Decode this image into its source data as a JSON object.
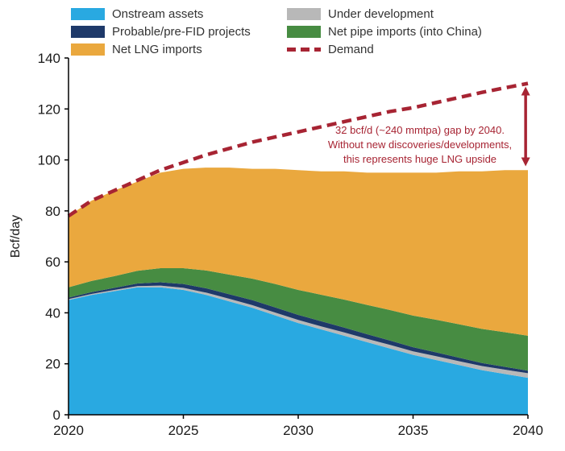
{
  "legend": {
    "items": [
      {
        "label": "Onstream assets",
        "color": "#29A9E1",
        "style": "fill"
      },
      {
        "label": "Under development",
        "color": "#B8B8B8",
        "style": "fill"
      },
      {
        "label": "Probable/pre-FID projects",
        "color": "#1E3969",
        "style": "fill"
      },
      {
        "label": "Net pipe imports (into China)",
        "color": "#478C42",
        "style": "fill"
      },
      {
        "label": "Net LNG imports",
        "color": "#EAA83E",
        "style": "fill"
      },
      {
        "label": "Demand",
        "color": "#A72433",
        "style": "dashed"
      }
    ]
  },
  "annotation": {
    "color": "#A72433",
    "lines": [
      "32 bcf/d (~240 mmtpa) gap by 2040.",
      "Without new discoveries/developments,",
      "this represents huge LNG upside"
    ]
  },
  "chart_data": {
    "type": "area",
    "stacked": true,
    "title": "",
    "xlabel": "",
    "ylabel": "Bcf/day",
    "ylim": [
      0,
      140
    ],
    "yticks": [
      0,
      20,
      40,
      60,
      80,
      100,
      120,
      140
    ],
    "xlim": [
      2020,
      2040
    ],
    "xticks": [
      2020,
      2025,
      2030,
      2035,
      2040
    ],
    "grid": false,
    "legend_position": "top",
    "x": [
      2020,
      2021,
      2022,
      2023,
      2024,
      2025,
      2026,
      2027,
      2028,
      2029,
      2030,
      2031,
      2032,
      2033,
      2034,
      2035,
      2036,
      2037,
      2038,
      2039,
      2040
    ],
    "series": [
      {
        "name": "Onstream assets",
        "color": "#29A9E1",
        "values": [
          45,
          47,
          48.5,
          50,
          50,
          49,
          47,
          44.5,
          42,
          39,
          36,
          33.5,
          31,
          28.5,
          26,
          23.5,
          21.5,
          19.5,
          17.5,
          16,
          14.5
        ]
      },
      {
        "name": "Under development",
        "color": "#B8B8B8",
        "values": [
          0.4,
          0.4,
          0.5,
          0.5,
          0.7,
          0.8,
          0.9,
          1,
          1,
          1.1,
          1.2,
          1.2,
          1.3,
          1.3,
          1.4,
          1.4,
          1.5,
          1.5,
          1.6,
          1.7,
          1.8
        ]
      },
      {
        "name": "Probable/pre-FID projects",
        "color": "#1E3969",
        "values": [
          0.6,
          0.7,
          0.8,
          1,
          1.3,
          1.5,
          1.7,
          1.8,
          2,
          2,
          2,
          2,
          1.9,
          1.8,
          1.7,
          1.6,
          1.5,
          1.4,
          1.2,
          1.1,
          1
        ]
      },
      {
        "name": "Net pipe imports (into China)",
        "color": "#478C42",
        "values": [
          4,
          4.4,
          4.6,
          5,
          5.5,
          6.2,
          7,
          7.7,
          8.4,
          9.2,
          9.8,
          10.4,
          11,
          11.5,
          12,
          12.4,
          12.8,
          13.1,
          13.4,
          13.6,
          13.7
        ]
      },
      {
        "name": "Net LNG imports",
        "color": "#EAA83E",
        "values": [
          28,
          31.5,
          33.6,
          35,
          37.5,
          39,
          40.4,
          42,
          43.1,
          45.2,
          47,
          48.4,
          50.3,
          51.9,
          53.9,
          56.1,
          57.7,
          60,
          61.8,
          63.6,
          65
        ]
      }
    ],
    "demand_line": {
      "name": "Demand",
      "color": "#A72433",
      "values": [
        78,
        84,
        88,
        92,
        96,
        99,
        102,
        104.5,
        107,
        109,
        111,
        113,
        115,
        117,
        119,
        120.5,
        122.5,
        124.5,
        126.5,
        128.3,
        130
      ]
    },
    "gap_arrow": {
      "x": 2039.9,
      "bottom": 97.5,
      "top": 128.8,
      "color": "#A72433"
    }
  }
}
